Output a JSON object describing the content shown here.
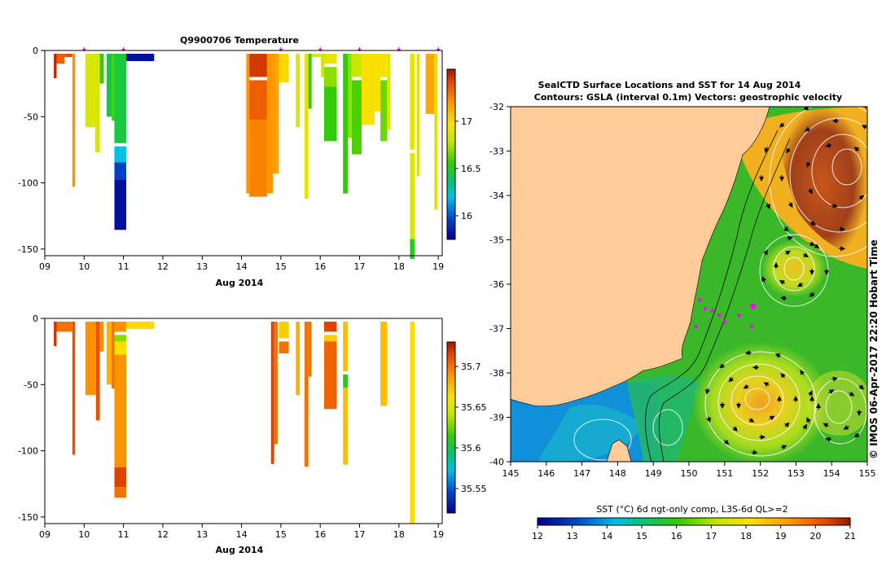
{
  "figure": {
    "title_top": "Q9900706  Temperature",
    "map_title_1": "SealCTD Surface Locations and SST for 14 Aug 2014",
    "map_title_2": "Contours: GSLA (interval 0.1m) Vectors: geostrophic velocity",
    "credit": "© IMOS 06-Apr-2017 22:20 Hobart Time",
    "xlabel": "Aug 2014",
    "sst_label": "SST (°C) 6d ngt-only comp, L3S-6d QL>=2"
  },
  "chart_data": [
    {
      "id": "temperature-section",
      "type": "heatmap",
      "title": "Q9900706  Temperature",
      "xlabel": "Aug 2014",
      "x_ticks": [
        "09",
        "10",
        "11",
        "12",
        "13",
        "14",
        "15",
        "16",
        "17",
        "18",
        "19"
      ],
      "x_tick_values": [
        9,
        10,
        11,
        12,
        13,
        14,
        15,
        16,
        17,
        18,
        19
      ],
      "xlim": [
        9,
        19.1
      ],
      "y_ticks": [
        "0",
        "-50",
        "-100",
        "-150"
      ],
      "y_tick_values": [
        0,
        -50,
        -100,
        -150
      ],
      "ylim": [
        -155,
        0
      ],
      "colorbar": {
        "range": [
          15.75,
          17.55
        ],
        "ticks": [
          "16",
          "16.5",
          "17"
        ],
        "tick_values": [
          16,
          16.5,
          17
        ]
      },
      "profile_markers_day": [
        10,
        11,
        15,
        16,
        17,
        18,
        19
      ],
      "profiles": [
        {
          "x0": 9.23,
          "x1": 9.3,
          "depth": 21,
          "segs": [
            [
              0,
              21,
              17.5
            ]
          ]
        },
        {
          "x0": 9.3,
          "x1": 9.5,
          "depth": 10,
          "segs": [
            [
              0,
              10,
              17.35
            ]
          ]
        },
        {
          "x0": 9.5,
          "x1": 9.7,
          "depth": 5,
          "segs": [
            [
              0,
              5,
              17.4
            ]
          ]
        },
        {
          "x0": 9.7,
          "x1": 9.77,
          "depth": 103,
          "segs": [
            [
              0,
              103,
              17.2
            ]
          ]
        },
        {
          "x0": 10.03,
          "x1": 10.28,
          "depth": 58,
          "segs": [
            [
              0,
              58,
              16.85
            ]
          ]
        },
        {
          "x0": 10.28,
          "x1": 10.4,
          "depth": 77,
          "segs": [
            [
              0,
              77,
              16.85
            ]
          ]
        },
        {
          "x0": 10.4,
          "x1": 10.5,
          "depth": 25,
          "segs": [
            [
              0,
              25,
              16.55
            ]
          ]
        },
        {
          "x0": 10.57,
          "x1": 10.7,
          "depth": 50,
          "segs": [
            [
              0,
              50,
              16.45
            ]
          ]
        },
        {
          "x0": 10.7,
          "x1": 10.77,
          "depth": 53,
          "segs": [
            [
              0,
              53,
              16.6
            ]
          ]
        },
        {
          "x0": 10.77,
          "x1": 11.07,
          "depth": 133,
          "segs": [
            [
              0,
              70,
              16.45
            ],
            [
              70,
              82,
              16.2
            ],
            [
              82,
              95,
              15.95
            ],
            [
              95,
              133,
              15.8
            ]
          ]
        },
        {
          "x0": 11.07,
          "x1": 11.78,
          "depth": 8,
          "segs": [
            [
              0,
              8,
              15.8
            ]
          ]
        },
        {
          "x0": 14.12,
          "x1": 14.2,
          "depth": 108,
          "segs": [
            [
              0,
              108,
              17.2
            ]
          ]
        },
        {
          "x0": 14.2,
          "x1": 14.65,
          "depth": 108,
          "segs": [
            [
              0,
              20,
              17.45
            ],
            [
              20,
              50,
              17.35
            ],
            [
              50,
              108,
              17.25
            ]
          ]
        },
        {
          "x0": 14.65,
          "x1": 14.8,
          "depth": 108,
          "segs": [
            [
              0,
              108,
              17.2
            ]
          ]
        },
        {
          "x0": 14.8,
          "x1": 14.87,
          "depth": 93,
          "segs": [
            [
              0,
              93,
              17.2
            ]
          ]
        },
        {
          "x0": 14.87,
          "x1": 14.95,
          "depth": 93,
          "segs": [
            [
              0,
              93,
              17.15
            ]
          ]
        },
        {
          "x0": 14.95,
          "x1": 15.2,
          "depth": 24,
          "segs": [
            [
              0,
              24,
              17.0
            ]
          ]
        },
        {
          "x0": 15.38,
          "x1": 15.48,
          "depth": 58,
          "segs": [
            [
              0,
              58,
              16.85
            ]
          ]
        },
        {
          "x0": 15.6,
          "x1": 15.7,
          "depth": 112,
          "segs": [
            [
              0,
              112,
              16.9
            ]
          ]
        },
        {
          "x0": 15.7,
          "x1": 15.78,
          "depth": 44,
          "segs": [
            [
              0,
              44,
              16.55
            ]
          ]
        },
        {
          "x0": 15.78,
          "x1": 16.02,
          "depth": 5,
          "segs": [
            [
              0,
              5,
              16.85
            ]
          ]
        },
        {
          "x0": 16.02,
          "x1": 16.1,
          "depth": 20,
          "segs": [
            [
              0,
              20,
              16.8
            ]
          ]
        },
        {
          "x0": 16.1,
          "x1": 16.42,
          "depth": 66,
          "segs": [
            [
              0,
              10,
              16.9
            ],
            [
              10,
              25,
              16.7
            ],
            [
              25,
              66,
              16.55
            ]
          ]
        },
        {
          "x0": 16.58,
          "x1": 16.7,
          "depth": 108,
          "segs": [
            [
              0,
              108,
              16.55
            ]
          ]
        },
        {
          "x0": 16.7,
          "x1": 16.8,
          "depth": 66,
          "segs": [
            [
              0,
              66,
              16.7
            ]
          ]
        },
        {
          "x0": 16.8,
          "x1": 17.05,
          "depth": 76,
          "segs": [
            [
              0,
              20,
              16.8
            ],
            [
              20,
              76,
              16.6
            ]
          ]
        },
        {
          "x0": 17.05,
          "x1": 17.38,
          "depth": 56,
          "segs": [
            [
              0,
              56,
              16.95
            ]
          ]
        },
        {
          "x0": 17.38,
          "x1": 17.53,
          "depth": 46,
          "segs": [
            [
              0,
              46,
              16.95
            ]
          ]
        },
        {
          "x0": 17.53,
          "x1": 17.7,
          "depth": 66,
          "segs": [
            [
              0,
              20,
              16.95
            ],
            [
              20,
              66,
              16.65
            ]
          ]
        },
        {
          "x0": 17.7,
          "x1": 17.78,
          "depth": 60,
          "segs": [
            [
              0,
              60,
              16.85
            ]
          ]
        },
        {
          "x0": 18.28,
          "x1": 18.4,
          "depth": 155,
          "segs": [
            [
              0,
              75,
              16.9
            ],
            [
              75,
              140,
              16.85
            ],
            [
              140,
              155,
              16.5
            ]
          ]
        },
        {
          "x0": 18.45,
          "x1": 18.52,
          "depth": 95,
          "segs": [
            [
              0,
              95,
              16.85
            ]
          ]
        },
        {
          "x0": 18.68,
          "x1": 18.9,
          "depth": 48,
          "segs": [
            [
              0,
              48,
              17.15
            ]
          ]
        },
        {
          "x0": 18.9,
          "x1": 18.98,
          "depth": 120,
          "segs": [
            [
              0,
              120,
              16.85
            ]
          ]
        }
      ]
    },
    {
      "id": "salinity-section",
      "type": "heatmap",
      "title": "",
      "xlabel": "Aug 2014",
      "x_ticks": [
        "09",
        "10",
        "11",
        "12",
        "13",
        "14",
        "15",
        "16",
        "17",
        "18",
        "19"
      ],
      "x_tick_values": [
        9,
        10,
        11,
        12,
        13,
        14,
        15,
        16,
        17,
        18,
        19
      ],
      "xlim": [
        9,
        19.1
      ],
      "y_ticks": [
        "0",
        "-50",
        "-100",
        "-150"
      ],
      "y_tick_values": [
        0,
        -50,
        -100,
        -150
      ],
      "ylim": [
        -155,
        0
      ],
      "colorbar": {
        "range": [
          35.52,
          35.73
        ],
        "ticks": [
          "35.55",
          "35.6",
          "35.65",
          "35.7"
        ],
        "tick_values": [
          35.55,
          35.6,
          35.65,
          35.7
        ]
      },
      "profiles": [
        {
          "x0": 9.23,
          "x1": 9.3,
          "depth": 21,
          "segs": [
            [
              0,
              21,
              35.72
            ]
          ]
        },
        {
          "x0": 9.3,
          "x1": 9.7,
          "depth": 10,
          "segs": [
            [
              0,
              10,
              35.7
            ]
          ]
        },
        {
          "x0": 9.7,
          "x1": 9.77,
          "depth": 103,
          "segs": [
            [
              0,
              103,
              35.71
            ]
          ]
        },
        {
          "x0": 10.03,
          "x1": 10.3,
          "depth": 58,
          "segs": [
            [
              0,
              58,
              35.69
            ]
          ]
        },
        {
          "x0": 10.3,
          "x1": 10.4,
          "depth": 77,
          "segs": [
            [
              0,
              77,
              35.71
            ]
          ]
        },
        {
          "x0": 10.4,
          "x1": 10.5,
          "depth": 25,
          "segs": [
            [
              0,
              25,
              35.69
            ]
          ]
        },
        {
          "x0": 10.57,
          "x1": 10.7,
          "depth": 50,
          "segs": [
            [
              0,
              50,
              35.68
            ]
          ]
        },
        {
          "x0": 10.7,
          "x1": 10.77,
          "depth": 53,
          "segs": [
            [
              0,
              53,
              35.7
            ]
          ]
        },
        {
          "x0": 10.77,
          "x1": 11.07,
          "depth": 133,
          "segs": [
            [
              0,
              10,
              35.69
            ],
            [
              10,
              15,
              35.63
            ],
            [
              15,
              25,
              35.66
            ],
            [
              25,
              110,
              35.69
            ],
            [
              110,
              125,
              35.715
            ],
            [
              125,
              133,
              35.7
            ]
          ]
        },
        {
          "x0": 11.07,
          "x1": 11.78,
          "depth": 8,
          "segs": [
            [
              0,
              8,
              35.665
            ]
          ]
        },
        {
          "x0": 14.75,
          "x1": 14.83,
          "depth": 110,
          "segs": [
            [
              0,
              110,
              35.715
            ]
          ]
        },
        {
          "x0": 14.83,
          "x1": 14.92,
          "depth": 95,
          "segs": [
            [
              0,
              95,
              35.7
            ]
          ]
        },
        {
          "x0": 14.95,
          "x1": 15.2,
          "depth": 24,
          "segs": [
            [
              0,
              15,
              35.67
            ],
            [
              15,
              24,
              35.7
            ]
          ]
        },
        {
          "x0": 15.38,
          "x1": 15.48,
          "depth": 58,
          "segs": [
            [
              0,
              58,
              35.68
            ]
          ]
        },
        {
          "x0": 15.6,
          "x1": 15.7,
          "depth": 112,
          "segs": [
            [
              0,
              112,
              35.7
            ]
          ]
        },
        {
          "x0": 15.7,
          "x1": 15.78,
          "depth": 44,
          "segs": [
            [
              0,
              44,
              35.7
            ]
          ]
        },
        {
          "x0": 16.1,
          "x1": 16.42,
          "depth": 66,
          "segs": [
            [
              0,
              10,
              35.715
            ],
            [
              10,
              15,
              35.67
            ],
            [
              15,
              66,
              35.705
            ]
          ]
        },
        {
          "x0": 16.58,
          "x1": 16.7,
          "depth": 108,
          "segs": [
            [
              0,
              40,
              35.675
            ],
            [
              40,
              50,
              35.61
            ],
            [
              50,
              108,
              35.675
            ]
          ]
        },
        {
          "x0": 17.53,
          "x1": 17.7,
          "depth": 66,
          "segs": [
            [
              0,
              66,
              35.675
            ]
          ]
        },
        {
          "x0": 18.28,
          "x1": 18.4,
          "depth": 155,
          "segs": [
            [
              0,
              155,
              35.665
            ]
          ]
        }
      ]
    },
    {
      "id": "sst-map",
      "type": "heatmap",
      "title": "SealCTD Surface Locations and SST for 14 Aug 2014",
      "subtitle": "Contours: GSLA (interval 0.1m) Vectors: geostrophic velocity",
      "x_ticks": [
        "145",
        "146",
        "147",
        "148",
        "149",
        "150",
        "151",
        "152",
        "153",
        "154",
        "155"
      ],
      "x_tick_values": [
        145,
        146,
        147,
        148,
        149,
        150,
        151,
        152,
        153,
        154,
        155
      ],
      "xlim": [
        145,
        155
      ],
      "y_ticks": [
        "-32",
        "-33",
        "-34",
        "-35",
        "-36",
        "-37",
        "-38",
        "-39",
        "-40"
      ],
      "y_tick_values": [
        -32,
        -33,
        -34,
        -35,
        -36,
        -37,
        -38,
        -39,
        -40
      ],
      "ylim": [
        -40,
        -32
      ],
      "colorbar": {
        "range": [
          12,
          21
        ],
        "ticks": [
          "12",
          "13",
          "14",
          "15",
          "16",
          "17",
          "18",
          "19",
          "20",
          "21"
        ],
        "tick_values": [
          12,
          13,
          14,
          15,
          16,
          17,
          18,
          19,
          20,
          21
        ],
        "label": "SST (°C) 6d ngt-only comp, L3S-6d QL>=2"
      },
      "ctd_locations": [
        {
          "lon": 150.3,
          "lat": -36.35
        },
        {
          "lon": 150.45,
          "lat": -36.55
        },
        {
          "lon": 150.65,
          "lat": -36.6
        },
        {
          "lon": 150.85,
          "lat": -36.7
        },
        {
          "lon": 151.0,
          "lat": -36.85
        },
        {
          "lon": 151.4,
          "lat": -36.7
        },
        {
          "lon": 150.2,
          "lat": -36.95
        },
        {
          "lon": 151.75,
          "lat": -36.95
        },
        {
          "lon": 151.8,
          "lat": -36.5
        }
      ]
    }
  ]
}
